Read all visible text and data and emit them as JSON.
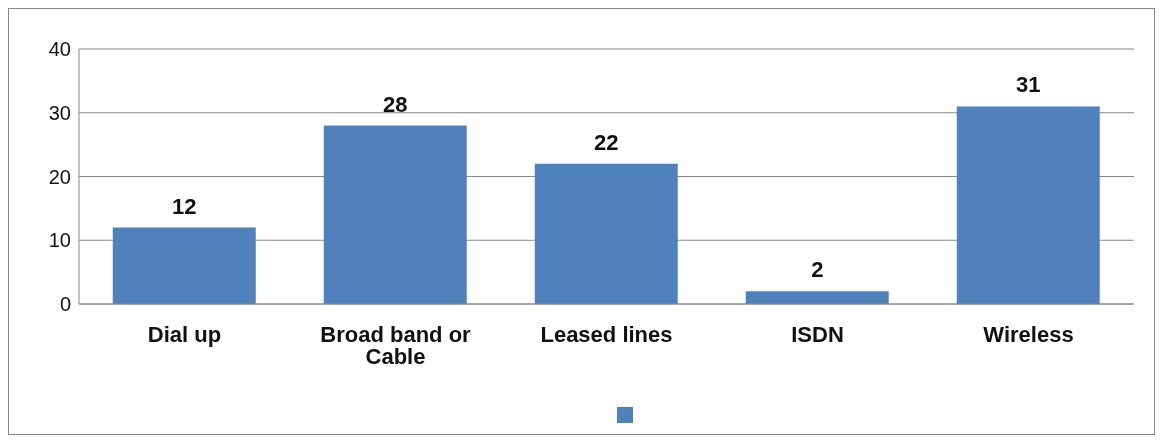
{
  "chart_data": {
    "type": "bar",
    "categories": [
      "Dial up",
      "Broad band or Cable",
      "Leased lines",
      "ISDN",
      "Wireless"
    ],
    "series": [
      {
        "color": "#4f81bd",
        "values": [
          12,
          28,
          22,
          2,
          31
        ]
      }
    ],
    "ylim": [
      0,
      40
    ],
    "yticks": [
      0,
      10,
      20,
      30,
      40
    ],
    "grid": "y",
    "data_labels": true
  }
}
